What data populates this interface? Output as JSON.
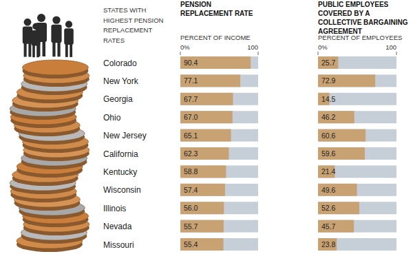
{
  "chart_data": [
    {
      "type": "bar",
      "orientation": "horizontal",
      "title": "PENSION REPLACEMENT RATE",
      "subtitle": "PERCENT OF INCOME",
      "ylabel": "STATES WITH HIGHEST PENSION REPLACEMENT RATES",
      "categories": [
        "Colorado",
        "New York",
        "Georgia",
        "Ohio",
        "New Jersey",
        "California",
        "Kentucky",
        "Wisconsin",
        "Illinois",
        "Nevada",
        "Missouri"
      ],
      "values": [
        90.4,
        77.1,
        67.7,
        67.0,
        65.1,
        62.3,
        58.8,
        57.4,
        56.0,
        55.7,
        55.4
      ],
      "value_labels": [
        "90.4",
        "77.1",
        "67.7",
        "67.0",
        "65.1",
        "62.3",
        "58.8",
        "57.4",
        "56.0",
        "55.7",
        "55.4"
      ],
      "color": "#c9a274",
      "xlim": [
        0,
        100
      ],
      "xticks": [
        {
          "value": 0,
          "label": "0%"
        },
        100
      ],
      "data_labels": true
    },
    {
      "type": "bar",
      "orientation": "horizontal",
      "title": "PUBLIC EMPLOYEES COVERED BY A COLLECTIVE BARGAINING AGREEMENT",
      "subtitle": "PERCENT OF EMPLOYEES",
      "categories": [
        "Colorado",
        "New York",
        "Georgia",
        "Ohio",
        "New Jersey",
        "California",
        "Kentucky",
        "Wisconsin",
        "Illinois",
        "Nevada",
        "Missouri"
      ],
      "values": [
        25.7,
        72.9,
        14.5,
        46.2,
        60.6,
        59.6,
        21.4,
        49.6,
        52.6,
        45.7,
        23.8
      ],
      "color": "#c9a274",
      "xlim": [
        0,
        100
      ],
      "xticks": [
        {
          "value": 0,
          "label": "0%"
        },
        100
      ],
      "data_labels": true,
      "tick_labels": "x"
    }
  ]
}
